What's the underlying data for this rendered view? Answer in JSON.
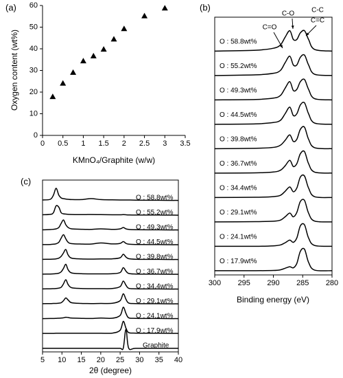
{
  "chart_data": [
    {
      "type": "scatter",
      "panel_label": "(a)",
      "x_label": "KMnO₄/Graphite (w/w)",
      "y_label": "Oxygen content (wt%)",
      "x": [
        0.25,
        0.5,
        0.75,
        1,
        1.25,
        1.5,
        1.75,
        2,
        2.5,
        3
      ],
      "values": [
        17.9,
        24.1,
        29.1,
        34.4,
        36.7,
        39.8,
        44.5,
        49.3,
        55.2,
        58.8
      ],
      "color": "#000000",
      "marker": "triangle",
      "xlim": [
        0,
        3.5
      ],
      "xticks": [
        0,
        0.5,
        1,
        1.5,
        2,
        2.5,
        3,
        3.5
      ],
      "ylim": [
        0,
        60
      ],
      "yticks": [
        0,
        10,
        20,
        30,
        40,
        50,
        60
      ]
    },
    {
      "type": "line",
      "panel_label": "(b)",
      "x_label": "Binding energy (eV)",
      "xlim": [
        300,
        280
      ],
      "xticks": [
        300,
        295,
        290,
        285,
        280
      ],
      "annotations": [
        {
          "text": "C=O"
        },
        {
          "text": "C-O"
        },
        {
          "text": "C-C"
        },
        {
          "text": "C=C"
        }
      ],
      "x": [
        300,
        293,
        290,
        288.8,
        288,
        287.2,
        286.6,
        286.0,
        285.4,
        284.7,
        284.0,
        283,
        280
      ],
      "series": [
        {
          "name": "O : 58.8wt%",
          "color": "#000000",
          "values": [
            0.02,
            0.06,
            0.15,
            0.3,
            0.65,
            0.95,
            0.55,
            0.55,
            0.85,
            0.95,
            0.55,
            0.1,
            0.02
          ]
        },
        {
          "name": "O : 55.2wt%",
          "color": "#000000",
          "values": [
            0.02,
            0.05,
            0.12,
            0.25,
            0.6,
            0.9,
            0.5,
            0.5,
            0.85,
            0.95,
            0.5,
            0.08,
            0.02
          ]
        },
        {
          "name": "O : 49.3wt%",
          "color": "#000000",
          "values": [
            0.02,
            0.04,
            0.1,
            0.22,
            0.55,
            0.85,
            0.45,
            0.5,
            0.85,
            0.95,
            0.5,
            0.08,
            0.02
          ]
        },
        {
          "name": "O : 44.5wt%",
          "color": "#000000",
          "values": [
            0.02,
            0.04,
            0.1,
            0.2,
            0.5,
            0.8,
            0.42,
            0.5,
            0.9,
            1.0,
            0.5,
            0.08,
            0.02
          ]
        },
        {
          "name": "O : 39.8wt%",
          "color": "#000000",
          "values": [
            0.02,
            0.04,
            0.08,
            0.18,
            0.4,
            0.65,
            0.35,
            0.45,
            0.9,
            1.0,
            0.45,
            0.07,
            0.02
          ]
        },
        {
          "name": "O : 36.7wt%",
          "color": "#000000",
          "values": [
            0.02,
            0.03,
            0.07,
            0.15,
            0.35,
            0.6,
            0.32,
            0.45,
            0.9,
            1.0,
            0.45,
            0.07,
            0.02
          ]
        },
        {
          "name": "O : 34.4wt%",
          "color": "#000000",
          "values": [
            0.02,
            0.03,
            0.06,
            0.12,
            0.3,
            0.5,
            0.28,
            0.45,
            0.95,
            1.0,
            0.45,
            0.06,
            0.02
          ]
        },
        {
          "name": "O : 29.1wt%",
          "color": "#000000",
          "values": [
            0.02,
            0.03,
            0.05,
            0.1,
            0.25,
            0.42,
            0.25,
            0.45,
            0.95,
            1.0,
            0.42,
            0.06,
            0.02
          ]
        },
        {
          "name": "O : 24.1wt%",
          "color": "#000000",
          "values": [
            0.02,
            0.02,
            0.04,
            0.08,
            0.18,
            0.3,
            0.2,
            0.4,
            0.95,
            1.0,
            0.4,
            0.06,
            0.02
          ]
        },
        {
          "name": "O : 17.9wt%",
          "color": "#000000",
          "values": [
            0.02,
            0.02,
            0.03,
            0.06,
            0.13,
            0.2,
            0.15,
            0.35,
            0.9,
            1.0,
            0.4,
            0.05,
            0.02
          ]
        }
      ]
    },
    {
      "type": "line",
      "panel_label": "(c)",
      "x_label": "2θ (degree)",
      "xlim": [
        5,
        40
      ],
      "xticks": [
        5,
        10,
        15,
        20,
        25,
        30,
        35,
        40
      ],
      "x": [
        5,
        7,
        7.8,
        8.5,
        9.2,
        9.8,
        10.4,
        11,
        11.6,
        12.5,
        15,
        17.5,
        20,
        23,
        25,
        25.8,
        26.5,
        27.2,
        29,
        35,
        40
      ],
      "series": [
        {
          "name": "O : 58.8wt%",
          "color": "#000000",
          "values": [
            0.05,
            0.1,
            0.4,
            0.9,
            0.4,
            0.2,
            0.15,
            0.12,
            0.1,
            0.08,
            0.08,
            0.15,
            0.08,
            0.06,
            0.05,
            0.05,
            0.05,
            0.05,
            0.04,
            0.03,
            0.02
          ]
        },
        {
          "name": "O : 55.2wt%",
          "color": "#000000",
          "values": [
            0.05,
            0.08,
            0.2,
            0.7,
            0.6,
            0.2,
            0.12,
            0.1,
            0.08,
            0.07,
            0.06,
            0.07,
            0.06,
            0.05,
            0.05,
            0.06,
            0.05,
            0.04,
            0.03,
            0.03,
            0.02
          ]
        },
        {
          "name": "O : 49.3wt%",
          "color": "#000000",
          "values": [
            0.03,
            0.05,
            0.07,
            0.1,
            0.2,
            0.5,
            0.75,
            0.4,
            0.2,
            0.1,
            0.07,
            0.06,
            0.1,
            0.06,
            0.1,
            0.2,
            0.1,
            0.06,
            0.04,
            0.03,
            0.02
          ]
        },
        {
          "name": "O : 44.5wt%",
          "color": "#000000",
          "values": [
            0.03,
            0.04,
            0.06,
            0.09,
            0.2,
            0.5,
            0.75,
            0.45,
            0.2,
            0.1,
            0.07,
            0.07,
            0.15,
            0.08,
            0.12,
            0.25,
            0.12,
            0.06,
            0.04,
            0.03,
            0.02
          ]
        },
        {
          "name": "O : 39.8wt%",
          "color": "#000000",
          "values": [
            0.03,
            0.04,
            0.05,
            0.07,
            0.12,
            0.25,
            0.5,
            0.75,
            0.35,
            0.12,
            0.06,
            0.05,
            0.06,
            0.07,
            0.15,
            0.4,
            0.2,
            0.08,
            0.04,
            0.03,
            0.02
          ]
        },
        {
          "name": "O : 36.7wt%",
          "color": "#000000",
          "values": [
            0.03,
            0.04,
            0.05,
            0.07,
            0.1,
            0.2,
            0.45,
            0.75,
            0.35,
            0.12,
            0.06,
            0.05,
            0.05,
            0.06,
            0.15,
            0.5,
            0.25,
            0.08,
            0.04,
            0.03,
            0.02
          ]
        },
        {
          "name": "O : 34.4wt%",
          "color": "#000000",
          "values": [
            0.03,
            0.04,
            0.05,
            0.06,
            0.09,
            0.15,
            0.4,
            0.7,
            0.35,
            0.12,
            0.06,
            0.05,
            0.05,
            0.06,
            0.2,
            0.6,
            0.3,
            0.08,
            0.04,
            0.03,
            0.02
          ]
        },
        {
          "name": "O : 29.1wt%",
          "color": "#000000",
          "values": [
            0.03,
            0.04,
            0.05,
            0.05,
            0.07,
            0.1,
            0.25,
            0.45,
            0.3,
            0.1,
            0.05,
            0.04,
            0.05,
            0.06,
            0.25,
            0.75,
            0.35,
            0.08,
            0.04,
            0.03,
            0.02
          ]
        },
        {
          "name": "O : 24.1wt%",
          "color": "#000000",
          "values": [
            0.02,
            0.03,
            0.03,
            0.04,
            0.05,
            0.06,
            0.08,
            0.12,
            0.1,
            0.06,
            0.04,
            0.03,
            0.06,
            0.05,
            0.25,
            0.85,
            0.4,
            0.08,
            0.04,
            0.03,
            0.02
          ]
        },
        {
          "name": "O : 17.9wt%",
          "color": "#000000",
          "values": [
            0.02,
            0.02,
            0.02,
            0.03,
            0.03,
            0.03,
            0.03,
            0.03,
            0.03,
            0.03,
            0.03,
            0.03,
            0.03,
            0.04,
            0.25,
            0.9,
            0.4,
            0.08,
            0.04,
            0.03,
            0.02
          ]
        },
        {
          "name": "Graphite",
          "color": "#000000",
          "values": [
            0.01,
            0.01,
            0.01,
            0.01,
            0.01,
            0.01,
            0.01,
            0.01,
            0.01,
            0.01,
            0.01,
            0.01,
            0.01,
            0.01,
            0.01,
            0.02,
            1.4,
            0.02,
            0.01,
            0.01,
            0.01
          ]
        }
      ]
    }
  ]
}
